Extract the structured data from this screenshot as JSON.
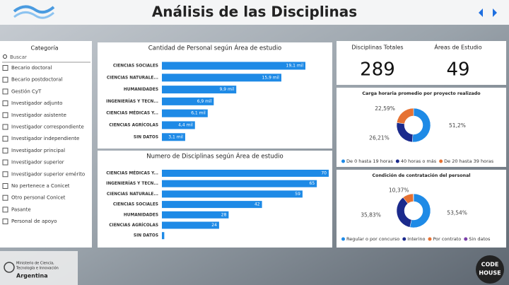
{
  "header": {
    "title": "Análisis de las Disciplinas"
  },
  "filter": {
    "title": "Categoría",
    "search_placeholder": "Buscar",
    "items": [
      "Becario doctoral",
      "Becario postdoctoral",
      "Gestión CyT",
      "Investigador adjunto",
      "Investigador asistente",
      "Investigador correspondiente",
      "Investigador independiente",
      "Investigador principal",
      "Investigador superior",
      "Investigador superior emérito",
      "No pertenece a Conicet",
      "Otro personal Conicet",
      "Pasante",
      "Personal de apoyo"
    ]
  },
  "kpis": [
    {
      "label": "Disciplinas Totales",
      "value": 289
    },
    {
      "label": "Áreas de Estudio",
      "value": 49
    }
  ],
  "footer": {
    "ministry_lines": [
      "Ministerio de Ciencia,",
      "Tecnología e Innovación",
      "Argentina"
    ],
    "badge_lines": [
      "CODE",
      "HOUSE"
    ]
  },
  "chart_data": [
    {
      "type": "bar",
      "orientation": "horizontal",
      "title": "Cantidad de Personal según Área de estudio",
      "categories": [
        "CIENCIAS SOCIALES",
        "CIENCIAS NATURALE...",
        "HUMANIDADES",
        "INGENIERÍAS Y TECN...",
        "CIENCIAS MÉDICAS Y...",
        "CIENCIAS AGRÍCOLAS",
        "SIN DATOS"
      ],
      "values": [
        19100,
        15900,
        9900,
        6900,
        6100,
        4400,
        3100
      ],
      "value_labels": [
        "19,1 mil",
        "15,9 mil",
        "9,9 mil",
        "6,9 mil",
        "6,1 mil",
        "4,4 mil",
        "3,1 mil"
      ],
      "color": "#1e8ae6"
    },
    {
      "type": "bar",
      "orientation": "horizontal",
      "title": "Numero de Disciplinas según Área de estudio",
      "categories": [
        "CIENCIAS MÉDICAS Y...",
        "INGENIERÍAS Y TECN...",
        "CIENCIAS NATURALE...",
        "CIENCIAS SOCIALES",
        "HUMANIDADES",
        "CIENCIAS AGRÍCOLAS",
        "SIN DATOS"
      ],
      "values": [
        70,
        65,
        59,
        42,
        28,
        24,
        1
      ],
      "value_labels": [
        "70",
        "65",
        "59",
        "42",
        "28",
        "24",
        null
      ],
      "color": "#1e8ae6"
    },
    {
      "type": "pie",
      "title": "Carga horaria promedio por proyecto realizado",
      "categories": [
        "De 0 hasta 19 horas",
        "40 horas o más",
        "De 20 hasta 39 horas"
      ],
      "values": [
        51.2,
        26.21,
        22.59
      ],
      "value_labels": [
        "51,2%",
        "26,21%",
        "22,59%"
      ],
      "colors": [
        "#1e8ae6",
        "#1b2a8c",
        "#e67233"
      ]
    },
    {
      "type": "pie",
      "title": "Condición de contratación del personal",
      "categories": [
        "Regular o por concurso",
        "Interino",
        "Por contrato",
        "Sin datos"
      ],
      "values": [
        53.54,
        35.83,
        10.37,
        0.26
      ],
      "value_labels": [
        "53,54%",
        "35,83%",
        "10,37%",
        null
      ],
      "colors": [
        "#1e8ae6",
        "#1b2a8c",
        "#e67233",
        "#7a3fa8"
      ]
    }
  ]
}
